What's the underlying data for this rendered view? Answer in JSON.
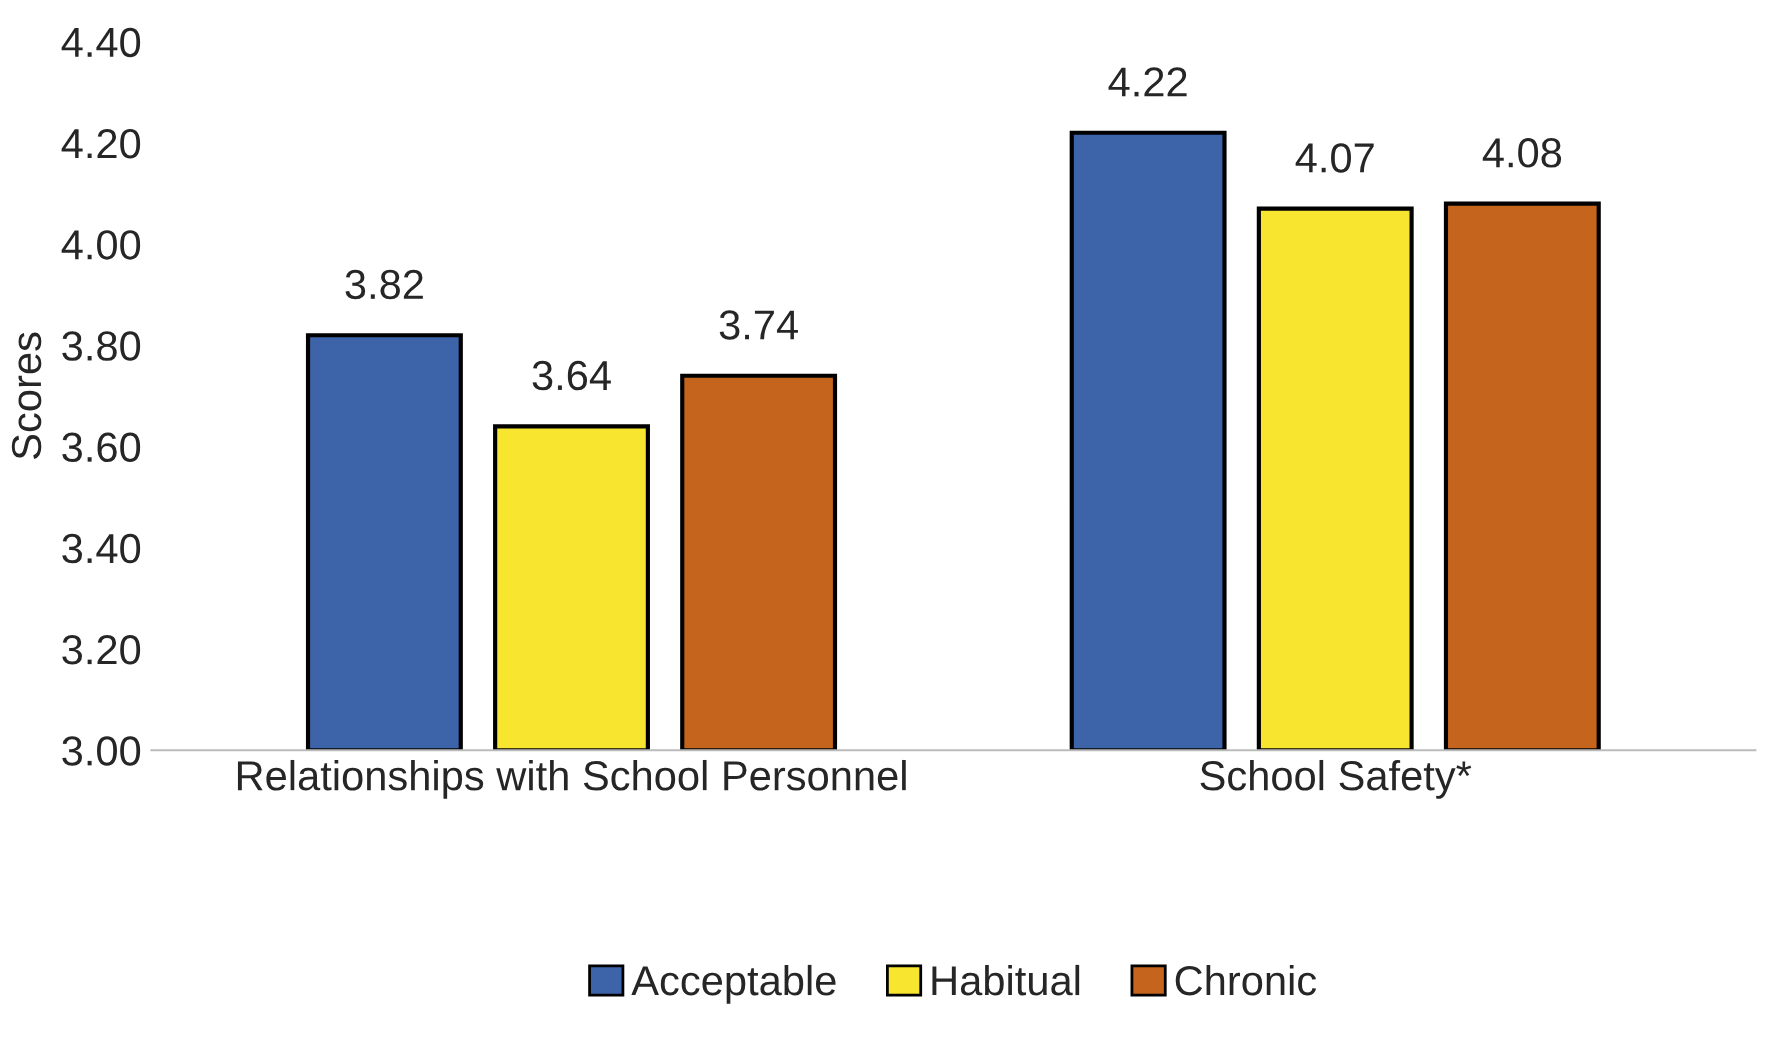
{
  "chart_data": {
    "type": "bar",
    "ylabel": "Scores",
    "categories": [
      "Relationships with School Personnel",
      "School Safety*"
    ],
    "series": [
      {
        "name": "Acceptable",
        "color": "#3d64a8",
        "values": [
          3.82,
          4.22
        ]
      },
      {
        "name": "Habitual",
        "color": "#f7e52f",
        "values": [
          3.64,
          4.07
        ]
      },
      {
        "name": "Chronic",
        "color": "#c5641c",
        "values": [
          3.74,
          4.08
        ]
      }
    ],
    "ylim": [
      3.0,
      4.4
    ],
    "yticks": [
      {
        "value": 3.0,
        "label": "3.00"
      },
      {
        "value": 3.2,
        "label": "3.20"
      },
      {
        "value": 3.4,
        "label": "3.40"
      },
      {
        "value": 3.6,
        "label": "3.60"
      },
      {
        "value": 3.8,
        "label": "3.80"
      },
      {
        "value": 4.0,
        "label": "4.00"
      },
      {
        "value": 4.2,
        "label": "4.20"
      },
      {
        "value": 4.4,
        "label": "4.40"
      }
    ],
    "data_labels": true,
    "legend": "bottom",
    "grid": false
  }
}
